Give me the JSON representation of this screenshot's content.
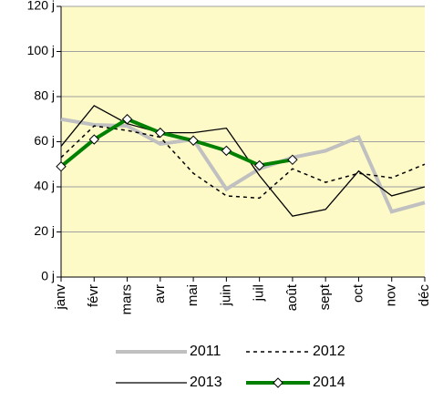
{
  "chart_data": {
    "type": "line",
    "categories": [
      "janv",
      "févr",
      "mars",
      "avr",
      "mai",
      "juin",
      "juil",
      "août",
      "sept",
      "oct",
      "nov",
      "déc"
    ],
    "series": [
      {
        "name": "2011",
        "color": "#c0c0c0",
        "width": 4,
        "dash": false,
        "marker": "none",
        "values": [
          70,
          67.5,
          67,
          59,
          61,
          39,
          48,
          53,
          56,
          62,
          29,
          33
        ]
      },
      {
        "name": "2012",
        "color": "#000000",
        "width": 1.5,
        "dash": true,
        "marker": "none",
        "values": [
          53,
          67,
          65,
          62,
          46,
          36,
          35,
          48,
          42,
          46,
          44,
          50
        ]
      },
      {
        "name": "2013",
        "color": "#000000",
        "width": 1.3,
        "dash": false,
        "marker": "none",
        "values": [
          58,
          76,
          68,
          64,
          64,
          66,
          45,
          27,
          30,
          47,
          36,
          40
        ]
      },
      {
        "name": "2014",
        "color": "#008000",
        "width": 4,
        "dash": false,
        "marker": "diamond",
        "values": [
          49,
          61,
          70,
          64,
          60.5,
          56,
          49.5,
          52,
          null,
          null,
          null,
          null
        ]
      }
    ],
    "ylim": [
      0,
      120
    ],
    "yticks": [
      {
        "value": 0,
        "label": "0 j"
      },
      {
        "value": 20,
        "label": "20 j"
      },
      {
        "value": 40,
        "label": "40 j"
      },
      {
        "value": 60,
        "label": "60 j"
      },
      {
        "value": 80,
        "label": "80 j"
      },
      {
        "value": 100,
        "label": "100 j"
      },
      {
        "value": 120,
        "label": "120 j"
      }
    ],
    "grid": true,
    "plot_background": "#fdfac8",
    "legend": "bottom"
  }
}
